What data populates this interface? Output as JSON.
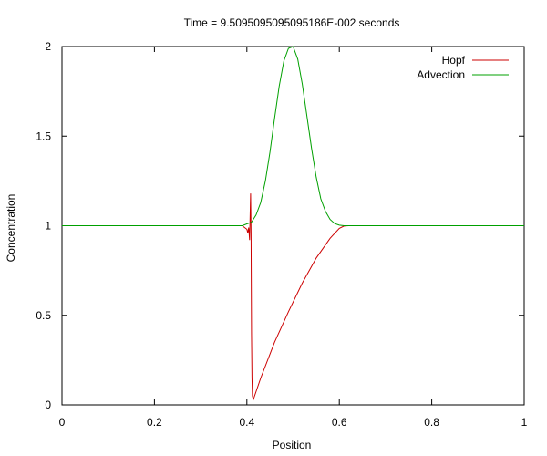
{
  "chart_data": {
    "type": "line",
    "title": "Time =    9.5095095095095186E-002  seconds",
    "xlabel": "Position",
    "ylabel": "Concentration",
    "xlim": [
      0,
      1
    ],
    "ylim": [
      0,
      2
    ],
    "x_ticks": [
      {
        "value": 0,
        "label": "0"
      },
      {
        "value": 0.2,
        "label": "0.2"
      },
      {
        "value": 0.4,
        "label": "0.4"
      },
      {
        "value": 0.6,
        "label": "0.6"
      },
      {
        "value": 0.8,
        "label": "0.8"
      },
      {
        "value": 1,
        "label": "1"
      }
    ],
    "y_ticks": [
      {
        "value": 0,
        "label": "0"
      },
      {
        "value": 0.5,
        "label": "0.5"
      },
      {
        "value": 1,
        "label": "1"
      },
      {
        "value": 1.5,
        "label": "1.5"
      },
      {
        "value": 2,
        "label": "2"
      }
    ],
    "grid": false,
    "legend": "top-right",
    "series": [
      {
        "name": "Hopf",
        "color": "#cc0000",
        "x": [
          0,
          0.38,
          0.39,
          0.395,
          0.4,
          0.402,
          0.404,
          0.406,
          0.408,
          0.409,
          0.41,
          0.411,
          0.412,
          0.414,
          0.43,
          0.46,
          0.49,
          0.52,
          0.55,
          0.58,
          0.6,
          0.61,
          0.62,
          0.7,
          1.0
        ],
        "y": [
          1.0,
          1.0,
          1.0,
          0.99,
          0.98,
          0.96,
          0.99,
          0.92,
          1.18,
          0.95,
          0.4,
          0.15,
          0.05,
          0.03,
          0.15,
          0.35,
          0.52,
          0.68,
          0.82,
          0.93,
          0.985,
          0.998,
          1.0,
          1.0,
          1.0
        ]
      },
      {
        "name": "Advection",
        "color": "#00a000",
        "x": [
          0,
          0.39,
          0.4,
          0.41,
          0.42,
          0.43,
          0.44,
          0.45,
          0.46,
          0.47,
          0.48,
          0.49,
          0.5,
          0.51,
          0.52,
          0.53,
          0.54,
          0.55,
          0.56,
          0.57,
          0.58,
          0.59,
          0.6,
          0.61,
          1.0
        ],
        "y": [
          1.0,
          1.0,
          1.01,
          1.02,
          1.06,
          1.13,
          1.25,
          1.41,
          1.6,
          1.78,
          1.92,
          1.99,
          2.0,
          1.93,
          1.79,
          1.61,
          1.43,
          1.27,
          1.15,
          1.08,
          1.035,
          1.012,
          1.003,
          1.0,
          1.0
        ]
      }
    ]
  }
}
